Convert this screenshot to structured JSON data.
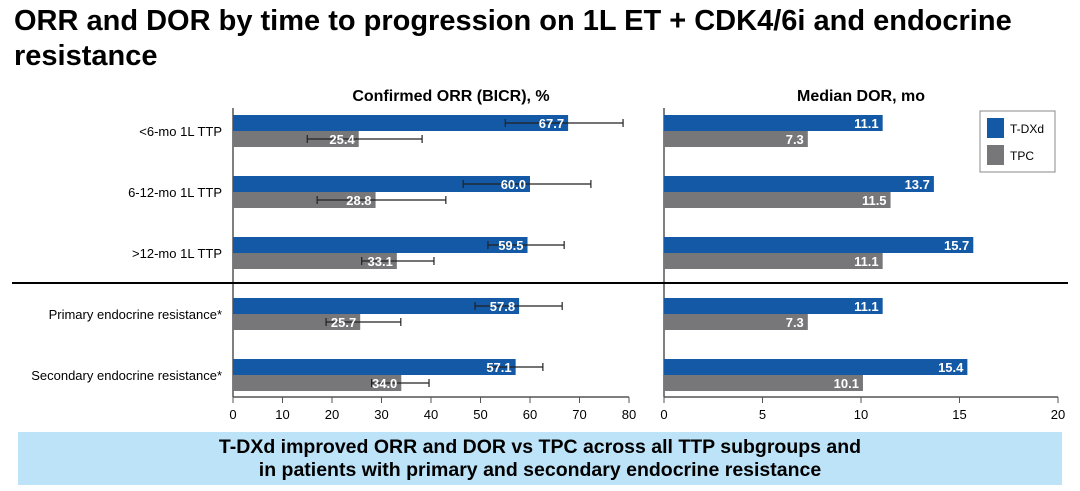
{
  "title": "ORR and DOR by time to progression on 1L ET + CDK4/6i and endocrine resistance",
  "banner": {
    "line1": "T-DXd improved ORR and DOR vs TPC across all TTP subgroups and",
    "line2": "in patients with primary and secondary endocrine resistance"
  },
  "colors": {
    "T-DXd": "#1359a5",
    "TPC": "#77777a",
    "banner": "#bde3f8"
  },
  "chart_data": [
    {
      "type": "bar",
      "orientation": "horizontal",
      "title": "Confirmed ORR (BICR), %",
      "categories": [
        "<6-mo 1L TTP",
        "6-12-mo 1L TTP",
        ">12-mo 1L TTP",
        "Primary endocrine resistance*",
        "Secondary endocrine resistance*"
      ],
      "xlim": [
        0,
        80
      ],
      "xticks": [
        0,
        10,
        20,
        30,
        40,
        50,
        60,
        70,
        80
      ],
      "series": [
        {
          "name": "T-DXd",
          "values": [
            67.7,
            60.0,
            59.5,
            57.8,
            57.1
          ],
          "ci": [
            [
              55.0,
              78.8
            ],
            [
              46.5,
              72.3
            ],
            [
              51.5,
              66.9
            ],
            [
              48.9,
              66.5
            ],
            [
              51.6,
              62.6
            ]
          ]
        },
        {
          "name": "TPC",
          "values": [
            25.4,
            28.8,
            33.1,
            25.7,
            34.0
          ],
          "ci": [
            [
              15.0,
              38.2
            ],
            [
              17.0,
              43.0
            ],
            [
              26.0,
              40.6
            ],
            [
              18.8,
              33.9
            ],
            [
              28.0,
              39.6
            ]
          ]
        }
      ]
    },
    {
      "type": "bar",
      "orientation": "horizontal",
      "title": "Median DOR, mo",
      "categories": [
        "<6-mo 1L TTP",
        "6-12-mo 1L TTP",
        ">12-mo 1L TTP",
        "Primary endocrine resistance*",
        "Secondary endocrine resistance*"
      ],
      "xlim": [
        0,
        20
      ],
      "xticks": [
        0,
        5,
        10,
        15,
        20
      ],
      "legend": "top-right",
      "series": [
        {
          "name": "T-DXd",
          "values": [
            11.1,
            13.7,
            15.7,
            11.1,
            15.4
          ]
        },
        {
          "name": "TPC",
          "values": [
            7.3,
            11.5,
            11.1,
            7.3,
            10.1
          ]
        }
      ]
    }
  ]
}
